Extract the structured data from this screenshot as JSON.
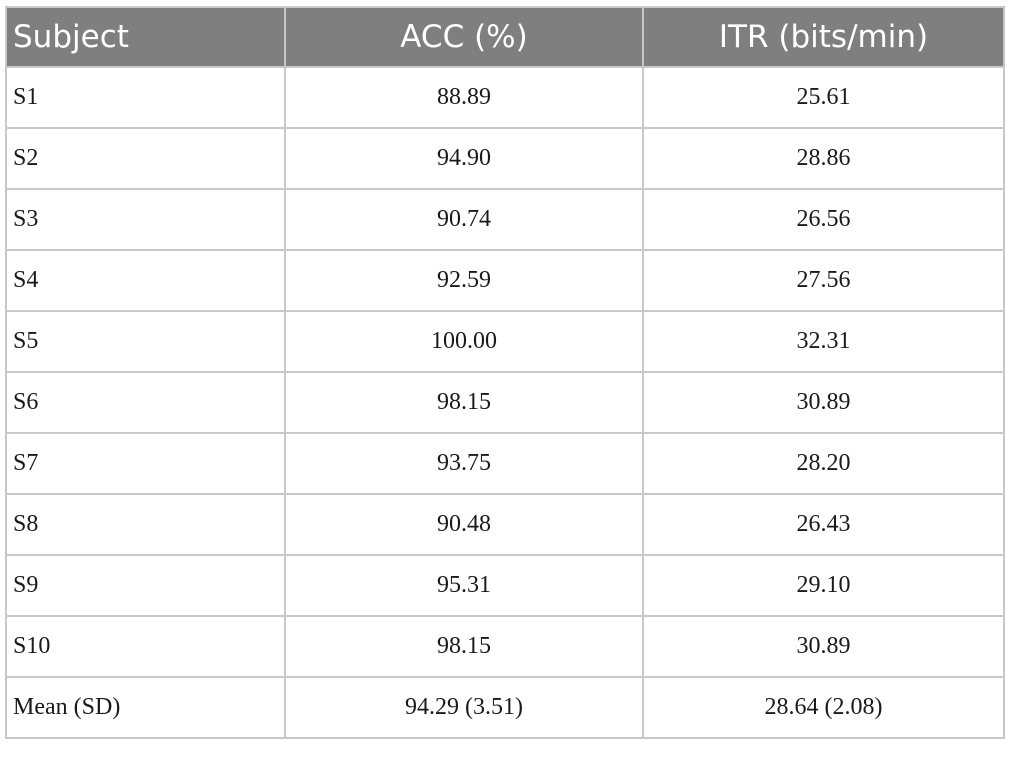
{
  "table": {
    "headers": [
      "Subject",
      "ACC (%)",
      "ITR (bits/min)"
    ],
    "rows": [
      [
        "S1",
        "88.89",
        "25.61"
      ],
      [
        "S2",
        "94.90",
        "28.86"
      ],
      [
        "S3",
        "90.74",
        "26.56"
      ],
      [
        "S4",
        "92.59",
        "27.56"
      ],
      [
        "S5",
        "100.00",
        "32.31"
      ],
      [
        "S6",
        "98.15",
        "30.89"
      ],
      [
        "S7",
        "93.75",
        "28.20"
      ],
      [
        "S8",
        "90.48",
        "26.43"
      ],
      [
        "S9",
        "95.31",
        "29.10"
      ],
      [
        "S10",
        "98.15",
        "30.89"
      ],
      [
        "Mean (SD)",
        "94.29 (3.51)",
        "28.64 (2.08)"
      ]
    ]
  },
  "colors": {
    "header_background": "#7f7f7f",
    "header_text": "#ffffff",
    "grid_line": "#c8c8c8",
    "body_text": "#1a1a1a"
  }
}
